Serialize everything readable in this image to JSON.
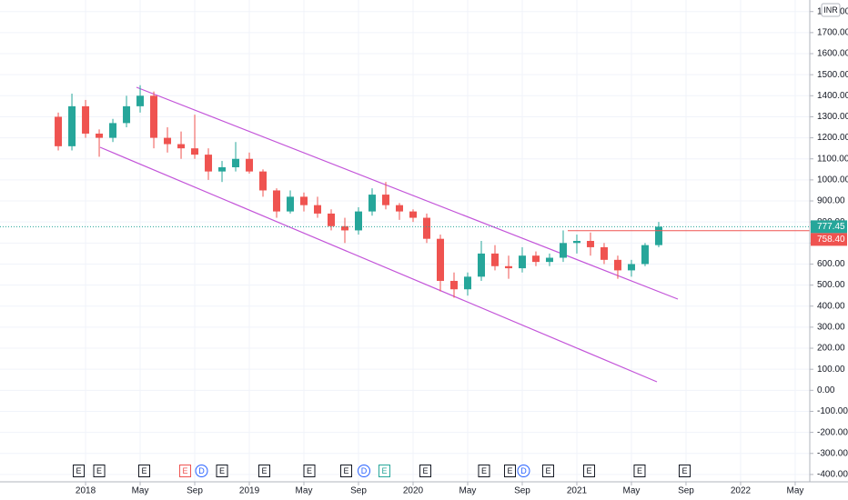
{
  "chart_data": {
    "type": "candlestick",
    "currency": "INR",
    "x": [
      -2,
      -1,
      0,
      1,
      2,
      3,
      4,
      5,
      6,
      7,
      8,
      9,
      10,
      11,
      12,
      13,
      14,
      15,
      16,
      17,
      18,
      19,
      20,
      21,
      22,
      23,
      24,
      25,
      26,
      27,
      28,
      29,
      30,
      31,
      32,
      33,
      34,
      35,
      36,
      37,
      38,
      39,
      40,
      41,
      42
    ],
    "open": [
      1300,
      1160,
      1350,
      1220,
      1200,
      1270,
      1350,
      1400,
      1200,
      1170,
      1150,
      1120,
      1040,
      1060,
      1100,
      1040,
      950,
      850,
      920,
      880,
      840,
      780,
      760,
      850,
      930,
      880,
      850,
      820,
      720,
      520,
      480,
      540,
      650,
      590,
      580,
      640,
      610,
      630,
      700,
      710,
      680,
      620,
      570,
      600,
      690
    ],
    "high": [
      1320,
      1410,
      1380,
      1240,
      1290,
      1400,
      1450,
      1420,
      1250,
      1230,
      1310,
      1150,
      1090,
      1180,
      1130,
      1050,
      960,
      950,
      940,
      920,
      860,
      820,
      870,
      960,
      990,
      890,
      860,
      840,
      740,
      560,
      560,
      710,
      690,
      640,
      680,
      660,
      650,
      760,
      740,
      750,
      700,
      640,
      620,
      700,
      800
    ],
    "low": [
      1140,
      1140,
      1200,
      1110,
      1180,
      1250,
      1320,
      1150,
      1130,
      1100,
      1100,
      1000,
      990,
      1040,
      1030,
      920,
      820,
      840,
      850,
      820,
      760,
      700,
      740,
      830,
      860,
      810,
      800,
      700,
      470,
      440,
      450,
      520,
      570,
      530,
      560,
      590,
      590,
      610,
      650,
      640,
      600,
      530,
      540,
      590,
      680
    ],
    "close": [
      1160,
      1350,
      1220,
      1200,
      1270,
      1350,
      1400,
      1200,
      1170,
      1150,
      1120,
      1040,
      1060,
      1100,
      1040,
      950,
      850,
      920,
      880,
      840,
      780,
      760,
      850,
      930,
      880,
      850,
      820,
      720,
      520,
      480,
      540,
      650,
      590,
      580,
      640,
      610,
      630,
      700,
      710,
      680,
      620,
      570,
      600,
      690,
      777.45
    ],
    "up_color": "#26a69a",
    "down_color": "#ef5350",
    "xlim": [
      -6.27,
      53.07
    ],
    "xticks": [
      {
        "value": 0,
        "label": "2018"
      },
      {
        "value": 4,
        "label": "May"
      },
      {
        "value": 8,
        "label": "Sep"
      },
      {
        "value": 12,
        "label": "2019"
      },
      {
        "value": 16,
        "label": "May"
      },
      {
        "value": 20,
        "label": "Sep"
      },
      {
        "value": 24,
        "label": "2020"
      },
      {
        "value": 28,
        "label": "May"
      },
      {
        "value": 32,
        "label": "Sep"
      },
      {
        "value": 36,
        "label": "2021"
      },
      {
        "value": 40,
        "label": "May"
      },
      {
        "value": 44,
        "label": "Sep"
      },
      {
        "value": 48,
        "label": "2022"
      },
      {
        "value": 52,
        "label": "May"
      }
    ],
    "ylim": [
      -435,
      1855
    ],
    "yticks": [
      {
        "value": -400,
        "label": "-400.00"
      },
      {
        "value": -300,
        "label": "-300.00"
      },
      {
        "value": -200,
        "label": "-200.00"
      },
      {
        "value": -100,
        "label": "-100.00"
      },
      {
        "value": 0,
        "label": "0.00"
      },
      {
        "value": 100,
        "label": "100.00"
      },
      {
        "value": 200,
        "label": "200.00"
      },
      {
        "value": 300,
        "label": "300.00"
      },
      {
        "value": 400,
        "label": "400.00"
      },
      {
        "value": 500,
        "label": "500.00"
      },
      {
        "value": 600,
        "label": "600.00"
      },
      {
        "value": 700,
        "label": "700.00"
      },
      {
        "value": 800,
        "label": "800.00"
      },
      {
        "value": 900,
        "label": "900.00"
      },
      {
        "value": 1000,
        "label": "1000.00"
      },
      {
        "value": 1100,
        "label": "1100.00"
      },
      {
        "value": 1200,
        "label": "1200.00"
      },
      {
        "value": 1300,
        "label": "1300.00"
      },
      {
        "value": 1400,
        "label": "1400.00"
      },
      {
        "value": 1500,
        "label": "1500.00"
      },
      {
        "value": 1600,
        "label": "1600.00"
      },
      {
        "value": 1700,
        "label": "1700.00"
      },
      {
        "value": 1800,
        "label": "1800.00"
      }
    ],
    "grid": true,
    "price_labels": [
      {
        "value": 777.45,
        "label": "777.45",
        "color": "#26a69a"
      },
      {
        "value": 758.4,
        "label": "758.40",
        "color": "#ef5350"
      }
    ],
    "events": [
      {
        "x": -0.5,
        "label": "E",
        "color": "#131722"
      },
      {
        "x": 1,
        "label": "E",
        "color": "#131722"
      },
      {
        "x": 4.3,
        "label": "E",
        "color": "#131722"
      },
      {
        "x": 7.3,
        "label": "E",
        "color": "#ef5350"
      },
      {
        "x": 8.5,
        "label": "D",
        "color": "#2962ff"
      },
      {
        "x": 10,
        "label": "E",
        "color": "#131722"
      },
      {
        "x": 13.1,
        "label": "E",
        "color": "#131722"
      },
      {
        "x": 16.4,
        "label": "E",
        "color": "#131722"
      },
      {
        "x": 19.1,
        "label": "E",
        "color": "#131722"
      },
      {
        "x": 20.4,
        "label": "D",
        "color": "#2962ff"
      },
      {
        "x": 21.9,
        "label": "E",
        "color": "#26a69a"
      },
      {
        "x": 24.9,
        "label": "E",
        "color": "#131722"
      },
      {
        "x": 29.2,
        "label": "E",
        "color": "#131722"
      },
      {
        "x": 31.1,
        "label": "E",
        "color": "#131722"
      },
      {
        "x": 32.1,
        "label": "D",
        "color": "#2962ff"
      },
      {
        "x": 33.9,
        "label": "E",
        "color": "#131722"
      },
      {
        "x": 36.9,
        "label": "E",
        "color": "#131722"
      },
      {
        "x": 40.6,
        "label": "E",
        "color": "#131722"
      },
      {
        "x": 43.9,
        "label": "E",
        "color": "#131722"
      }
    ]
  }
}
